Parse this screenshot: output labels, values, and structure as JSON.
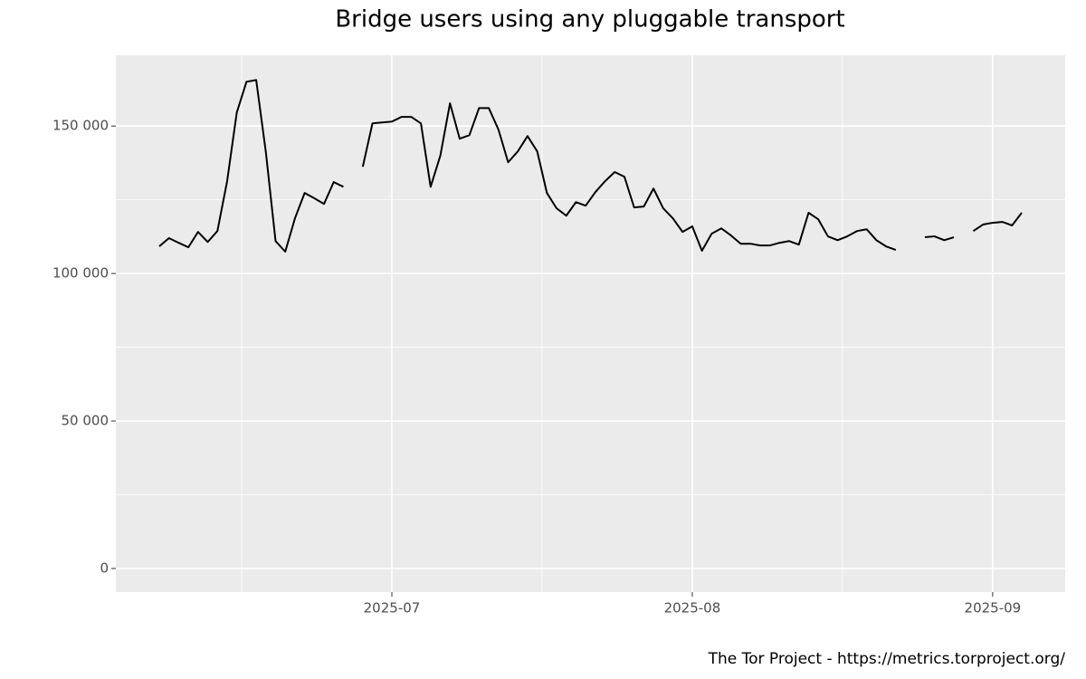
{
  "chart_data": {
    "type": "line",
    "title": "Bridge users using any pluggable transport",
    "caption": "The Tor Project - https://metrics.torproject.org/",
    "categories": [
      null,
      null,
      null,
      null,
      null,
      null,
      null,
      null,
      null,
      null,
      null,
      null,
      null,
      null,
      null,
      null,
      null,
      null,
      null,
      null,
      null,
      null,
      null,
      null,
      "2025-07",
      null,
      null,
      null,
      null,
      null,
      null,
      null,
      null,
      null,
      null,
      null,
      null,
      null,
      null,
      null,
      null,
      null,
      null,
      null,
      null,
      null,
      null,
      null,
      null,
      null,
      null,
      null,
      null,
      null,
      null,
      "2025-08",
      null,
      null,
      null,
      null,
      null,
      null,
      null,
      null,
      null,
      null,
      null,
      null,
      null,
      null,
      null,
      null,
      null,
      null,
      null,
      null,
      null,
      null,
      null,
      null,
      null,
      null,
      null,
      null,
      null,
      null,
      "2025-09",
      null,
      null,
      null
    ],
    "values": [
      109200,
      112000,
      110400,
      108900,
      114100,
      110700,
      114400,
      131300,
      154600,
      165000,
      165600,
      141100,
      111000,
      107400,
      118700,
      127300,
      125500,
      123600,
      131000,
      129400,
      null,
      136200,
      150900,
      151200,
      151500,
      153100,
      153100,
      150900,
      129400,
      139900,
      157700,
      145700,
      146900,
      156100,
      156100,
      148800,
      137700,
      141400,
      146600,
      141400,
      127300,
      122100,
      119600,
      124200,
      123000,
      127600,
      131300,
      134400,
      132800,
      122400,
      122700,
      128800,
      122100,
      118700,
      114100,
      116000,
      107700,
      113500,
      115300,
      112900,
      110100,
      110100,
      109500,
      109500,
      110400,
      111000,
      109800,
      120600,
      118400,
      112600,
      111300,
      112600,
      114400,
      115000,
      111300,
      109200,
      108000,
      null,
      null,
      112300,
      112600,
      111300,
      112300,
      null,
      114400,
      116600,
      117200,
      117500,
      116300,
      120600
    ],
    "color": "#000000",
    "ylim": [
      -8000,
      174000
    ],
    "yticks": [
      0,
      {
        "value": 50000,
        "label": "50 000"
      },
      {
        "value": 100000,
        "label": "100 000"
      },
      {
        "value": 150000,
        "label": "150 000"
      }
    ],
    "grid": true
  }
}
